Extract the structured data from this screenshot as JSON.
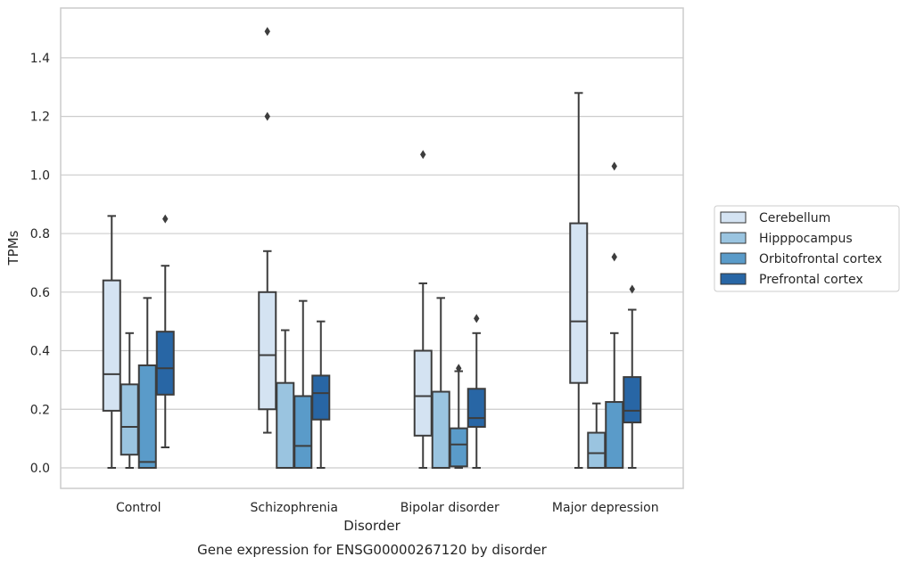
{
  "chart_data": {
    "type": "boxplot",
    "title": "",
    "caption": "Gene expression for ENSG00000267120 by disorder",
    "xlabel": "Disorder",
    "ylabel": "TPMs",
    "ylim": [
      -0.07,
      1.57
    ],
    "yticks": [
      "0.0",
      "0.2",
      "0.4",
      "0.6",
      "0.8",
      "1.0",
      "1.2",
      "1.4"
    ],
    "grid": "horizontal",
    "legend_placement": "right",
    "categories": [
      "Control",
      "Schizophrenia",
      "Bipolar disorder",
      "Major depression"
    ],
    "series": [
      {
        "name": "Cerebellum",
        "color": "#d4e3f2",
        "boxes": [
          {
            "whislo": 0.0,
            "q1": 0.195,
            "med": 0.32,
            "q3": 0.64,
            "whishi": 0.86,
            "fliers": []
          },
          {
            "whislo": 0.12,
            "q1": 0.2,
            "med": 0.385,
            "q3": 0.6,
            "whishi": 0.74,
            "fliers": [
              1.2,
              1.49
            ]
          },
          {
            "whislo": 0.0,
            "q1": 0.11,
            "med": 0.245,
            "q3": 0.4,
            "whishi": 0.63,
            "fliers": [
              1.07
            ]
          },
          {
            "whislo": 0.0,
            "q1": 0.29,
            "med": 0.5,
            "q3": 0.835,
            "whishi": 1.28,
            "fliers": []
          }
        ]
      },
      {
        "name": "Hipppocampus",
        "color": "#9ac4e0",
        "boxes": [
          {
            "whislo": 0.0,
            "q1": 0.045,
            "med": 0.14,
            "q3": 0.285,
            "whishi": 0.46,
            "fliers": []
          },
          {
            "whislo": 0.0,
            "q1": 0.0,
            "med": 0.0,
            "q3": 0.29,
            "whishi": 0.47,
            "fliers": []
          },
          {
            "whislo": 0.0,
            "q1": 0.0,
            "med": 0.0,
            "q3": 0.26,
            "whishi": 0.58,
            "fliers": []
          },
          {
            "whislo": 0.0,
            "q1": 0.0,
            "med": 0.05,
            "q3": 0.12,
            "whishi": 0.22,
            "fliers": []
          }
        ]
      },
      {
        "name": "Orbitofrontal cortex",
        "color": "#5a9bc9",
        "boxes": [
          {
            "whislo": 0.0,
            "q1": 0.0,
            "med": 0.02,
            "q3": 0.35,
            "whishi": 0.58,
            "fliers": []
          },
          {
            "whislo": 0.0,
            "q1": 0.0,
            "med": 0.075,
            "q3": 0.245,
            "whishi": 0.57,
            "fliers": []
          },
          {
            "whislo": 0.0,
            "q1": 0.005,
            "med": 0.08,
            "q3": 0.135,
            "whishi": 0.33,
            "fliers": [
              0.34
            ]
          },
          {
            "whislo": 0.0,
            "q1": 0.0,
            "med": 0.0,
            "q3": 0.225,
            "whishi": 0.46,
            "fliers": [
              0.72,
              1.03
            ]
          }
        ]
      },
      {
        "name": "Prefrontal cortex",
        "color": "#2866a5",
        "boxes": [
          {
            "whislo": 0.07,
            "q1": 0.25,
            "med": 0.34,
            "q3": 0.465,
            "whishi": 0.69,
            "fliers": [
              0.85
            ]
          },
          {
            "whislo": 0.0,
            "q1": 0.165,
            "med": 0.255,
            "q3": 0.315,
            "whishi": 0.5,
            "fliers": []
          },
          {
            "whislo": 0.0,
            "q1": 0.14,
            "med": 0.17,
            "q3": 0.27,
            "whishi": 0.46,
            "fliers": [
              0.51
            ]
          },
          {
            "whislo": 0.0,
            "q1": 0.155,
            "med": 0.195,
            "q3": 0.31,
            "whishi": 0.54,
            "fliers": [
              0.61
            ]
          }
        ]
      }
    ]
  }
}
